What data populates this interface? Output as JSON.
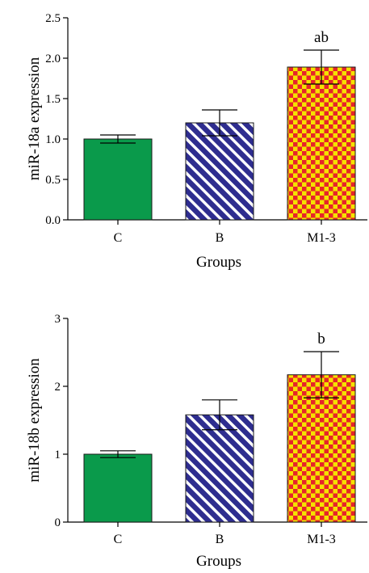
{
  "chart_data": [
    {
      "type": "bar",
      "categories": [
        "C",
        "B",
        "M1-3"
      ],
      "values": [
        1.0,
        1.2,
        1.89
      ],
      "errors": [
        0.05,
        0.16,
        0.21
      ],
      "annotations": [
        "",
        "",
        "ab"
      ],
      "xlabel": "Groups",
      "ylabel": "miR-18a expression",
      "ylim": [
        0,
        2.5
      ],
      "yticks": [
        "0.0",
        "0.5",
        "1.0",
        "1.5",
        "2.0",
        "2.5"
      ],
      "grid": false
    },
    {
      "type": "bar",
      "categories": [
        "C",
        "B",
        "M1-3"
      ],
      "values": [
        1.0,
        1.58,
        2.17
      ],
      "errors": [
        0.05,
        0.22,
        0.34
      ],
      "annotations": [
        "",
        "",
        "b"
      ],
      "xlabel": "Groups",
      "ylabel": "miR-18b expression",
      "ylim": [
        0,
        3
      ],
      "yticks": [
        "0",
        "1",
        "2",
        "3"
      ],
      "grid": false
    }
  ],
  "bar_styles": [
    {
      "fill": "#0a9a4b",
      "pattern": "solid"
    },
    {
      "fill": "#2e2d8f",
      "pattern": "diagonal-stripes",
      "stripe": "#ffffff"
    },
    {
      "fill": "#f5e200",
      "pattern": "checker",
      "checker": "#e6242a"
    }
  ]
}
